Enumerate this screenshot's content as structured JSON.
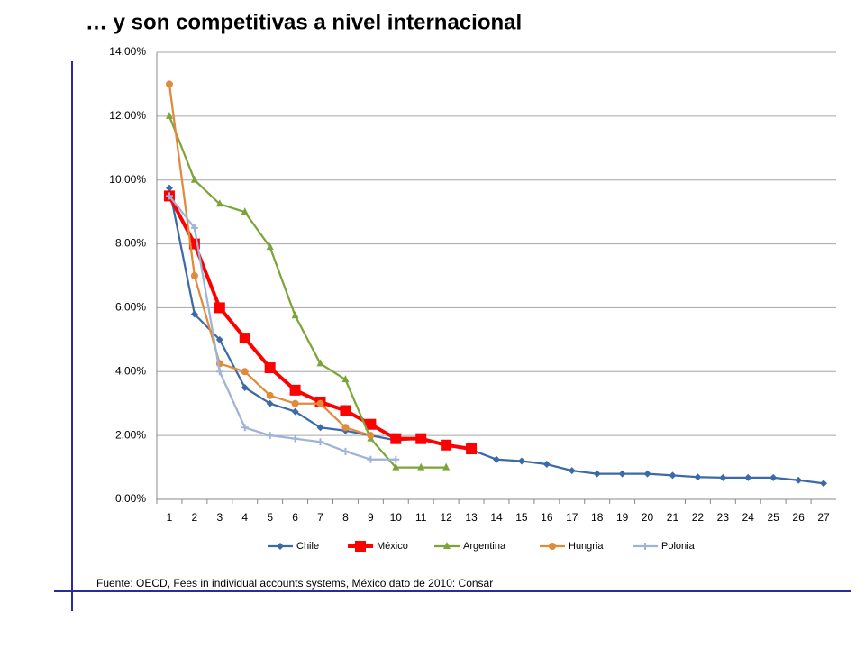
{
  "title": "… y son competitivas a nivel internacional",
  "source": "Fuente: OECD, Fees in individual accounts systems, México dato de 2010: Consar",
  "chart_data": {
    "type": "line",
    "categories": [
      1,
      2,
      3,
      4,
      5,
      6,
      7,
      8,
      9,
      10,
      11,
      12,
      13,
      14,
      15,
      16,
      17,
      18,
      19,
      20,
      21,
      22,
      23,
      24,
      25,
      26,
      27
    ],
    "ylim": [
      0,
      14
    ],
    "yticks": [
      {
        "value": 0,
        "label": "0.00%"
      },
      {
        "value": 2,
        "label": "2.00%"
      },
      {
        "value": 4,
        "label": "4.00%"
      },
      {
        "value": 6,
        "label": "6.00%"
      },
      {
        "value": 8,
        "label": "8.00%"
      },
      {
        "value": 10,
        "label": "10.00%"
      },
      {
        "value": 12,
        "label": "12.00%"
      },
      {
        "value": 14,
        "label": "14.00%"
      }
    ],
    "grid": true,
    "legend": "bottom",
    "series": [
      {
        "name": "Chile",
        "color": "#3c6aa8",
        "marker": "diamond",
        "values": [
          9.75,
          5.8,
          5.0,
          3.5,
          3.0,
          2.75,
          2.25,
          2.15,
          2.0,
          1.85,
          1.9,
          1.7,
          1.55,
          1.25,
          1.2,
          1.1,
          0.9,
          0.8,
          0.8,
          0.8,
          0.75,
          0.7,
          0.68,
          0.68,
          0.68,
          0.6,
          0.5
        ]
      },
      {
        "name": "México",
        "color": "#ff0000",
        "marker": "square",
        "values": [
          9.5,
          8.0,
          6.0,
          5.05,
          4.12,
          3.42,
          3.05,
          2.78,
          2.35,
          1.9,
          1.9,
          1.7,
          1.58,
          null,
          null,
          null,
          null,
          null,
          null,
          null,
          null,
          null,
          null,
          null,
          null,
          null,
          null
        ]
      },
      {
        "name": "Argentina",
        "color": "#7da43a",
        "marker": "triangle",
        "values": [
          12.0,
          10.0,
          9.25,
          9.0,
          7.9,
          5.75,
          4.25,
          3.75,
          1.9,
          1.0,
          1.0,
          1.0,
          null,
          null,
          null,
          null,
          null,
          null,
          null,
          null,
          null,
          null,
          null,
          null,
          null,
          null,
          null
        ]
      },
      {
        "name": "Hungria",
        "color": "#e08a3c",
        "marker": "circle",
        "values": [
          13.0,
          7.0,
          4.25,
          4.0,
          3.25,
          3.0,
          3.0,
          2.25,
          2.0,
          null,
          null,
          null,
          null,
          null,
          null,
          null,
          null,
          null,
          null,
          null,
          null,
          null,
          null,
          null,
          null,
          null,
          null
        ]
      },
      {
        "name": "Polonia",
        "color": "#9db3d8",
        "marker": "plus",
        "values": [
          9.5,
          8.5,
          4.0,
          2.25,
          2.0,
          1.9,
          1.8,
          1.5,
          1.25,
          1.25,
          null,
          null,
          null,
          null,
          null,
          null,
          null,
          null,
          null,
          null,
          null,
          null,
          null,
          null,
          null,
          null,
          null
        ]
      }
    ]
  }
}
